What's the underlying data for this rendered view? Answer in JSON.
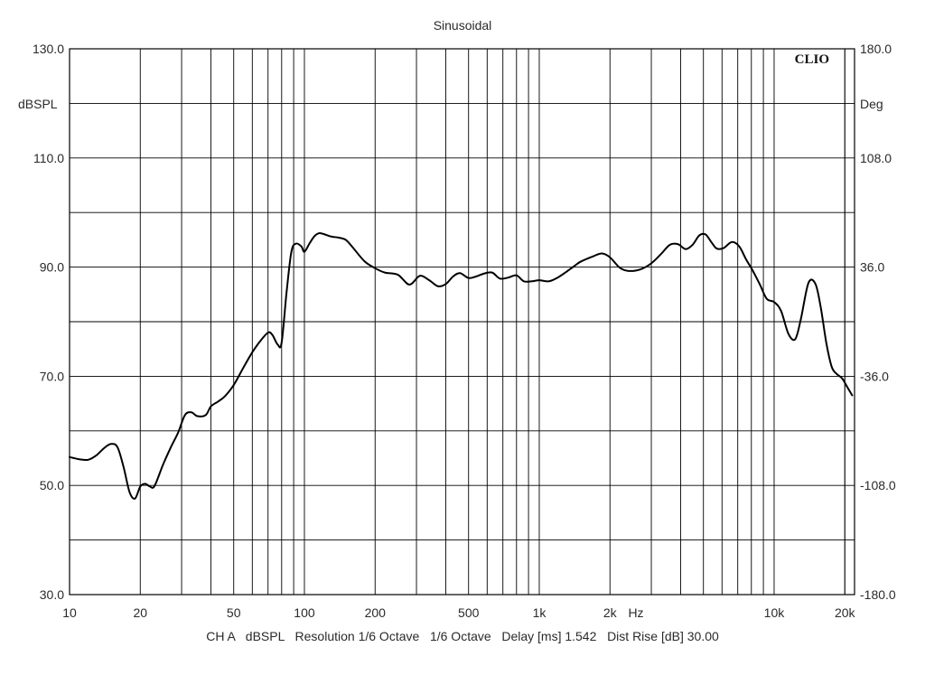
{
  "chart_data": {
    "type": "line",
    "title": "Sinusoidal",
    "brand": "CLIO",
    "x_scale": "log",
    "xlim": [
      10,
      22000
    ],
    "x_ticks": [
      {
        "v": 10,
        "label": "10"
      },
      {
        "v": 20,
        "label": "20"
      },
      {
        "v": 50,
        "label": "50"
      },
      {
        "v": 100,
        "label": "100"
      },
      {
        "v": 200,
        "label": "200"
      },
      {
        "v": 500,
        "label": "500"
      },
      {
        "v": 1000,
        "label": "1k"
      },
      {
        "v": 2000,
        "label": "2k"
      },
      {
        "v": 10000,
        "label": "10k"
      },
      {
        "v": 20000,
        "label": "20k"
      }
    ],
    "xlabel": "Hz",
    "ylim": [
      30,
      130
    ],
    "y_ticks": [
      130,
      110,
      90,
      70,
      50,
      30
    ],
    "y_tick_labels": [
      "130.0",
      "110.0",
      "90.0",
      "70.0",
      "50.0",
      "30.0"
    ],
    "ylabel": "dBSPL",
    "y2lim": [
      -180,
      180
    ],
    "y2_tick_labels": [
      "180.0",
      "108.0",
      "36.0",
      "-36.0",
      "-108.0",
      "-180.0"
    ],
    "y2label": "Deg",
    "grid": true,
    "series": [
      {
        "color": "#000000",
        "x": [
          10,
          11,
          12,
          13,
          14,
          15,
          16,
          17,
          18,
          19,
          20,
          21,
          22,
          23,
          25,
          27,
          29,
          31,
          33,
          35,
          38,
          40,
          43,
          46,
          50,
          55,
          60,
          65,
          70,
          73,
          77,
          80,
          84,
          88,
          92,
          97,
          100,
          105,
          110,
          115,
          120,
          130,
          140,
          150,
          160,
          180,
          200,
          220,
          250,
          280,
          310,
          340,
          370,
          400,
          430,
          460,
          500,
          540,
          580,
          630,
          680,
          740,
          800,
          860,
          930,
          1000,
          1100,
          1200,
          1300,
          1400,
          1500,
          1700,
          1850,
          2000,
          2200,
          2400,
          2700,
          3000,
          3300,
          3600,
          3900,
          4200,
          4500,
          4800,
          5100,
          5400,
          5700,
          6100,
          6600,
          7100,
          7600,
          8100,
          8700,
          9300,
          10000,
          10700,
          11500,
          12300,
          13000,
          14000,
          15000,
          15800,
          16700,
          17600,
          18500,
          19500,
          20500,
          21500
        ],
        "values": [
          55.2,
          54.8,
          54.7,
          55.5,
          56.8,
          57.6,
          57.0,
          53.3,
          48.8,
          47.6,
          49.8,
          50.3,
          49.8,
          49.9,
          53.8,
          57.0,
          59.7,
          62.9,
          63.4,
          62.7,
          62.9,
          64.5,
          65.4,
          66.4,
          68.4,
          71.6,
          74.4,
          76.5,
          78.0,
          77.6,
          75.8,
          76.2,
          85.5,
          92.8,
          94.3,
          93.8,
          92.8,
          94.3,
          95.6,
          96.2,
          96.1,
          95.6,
          95.4,
          95.0,
          93.7,
          91.1,
          89.8,
          89.0,
          88.6,
          86.8,
          88.4,
          87.6,
          86.5,
          86.9,
          88.3,
          88.9,
          88.0,
          88.3,
          88.8,
          89.0,
          87.9,
          88.1,
          88.5,
          87.4,
          87.4,
          87.6,
          87.4,
          88.1,
          89.1,
          90.1,
          91.0,
          92.0,
          92.5,
          91.8,
          89.9,
          89.3,
          89.6,
          90.7,
          92.4,
          94.1,
          94.2,
          93.3,
          94.1,
          95.8,
          96.0,
          94.6,
          93.4,
          93.5,
          94.6,
          93.8,
          91.4,
          89.4,
          86.8,
          84.2,
          83.6,
          82.0,
          77.8,
          76.8,
          80.5,
          87.1,
          86.9,
          82.6,
          76.0,
          71.7,
          70.4,
          69.6,
          68.0,
          66.5
        ]
      }
    ]
  },
  "footer": {
    "channel": "CH A",
    "unit": "dBSPL",
    "resolution": "Resolution 1/6 Octave",
    "octave": "1/6 Octave",
    "delay": "Delay [ms] 1.542",
    "dist_rise": "Dist Rise [dB] 30.00"
  }
}
